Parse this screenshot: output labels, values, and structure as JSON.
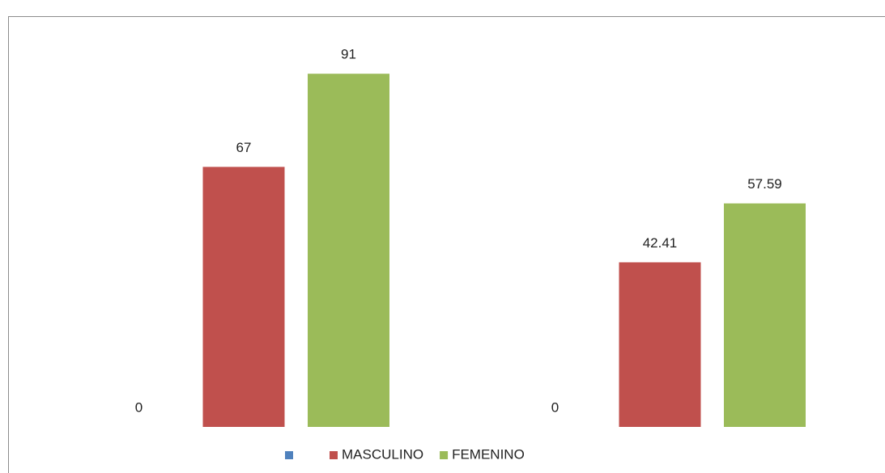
{
  "chart_data": {
    "type": "bar",
    "categories": [
      null,
      null
    ],
    "series": [
      {
        "color": "#4f81bd",
        "values": [
          0,
          0
        ]
      },
      {
        "name": "MASCULINO",
        "color": "#c0504d",
        "values": [
          67,
          42.41
        ]
      },
      {
        "name": "FEMENINO",
        "color": "#9bbb59",
        "values": [
          91,
          57.59
        ]
      }
    ],
    "ylim": [
      0,
      100
    ],
    "legend": "bottom"
  }
}
